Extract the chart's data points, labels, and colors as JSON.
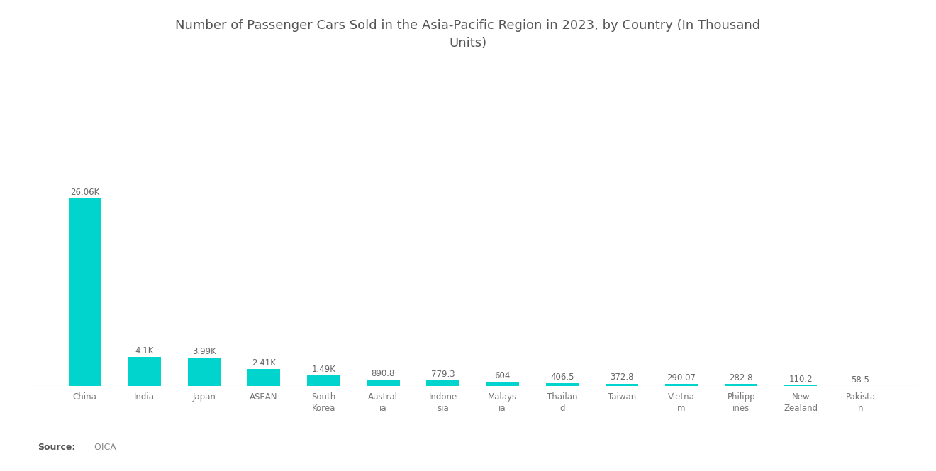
{
  "title": "Number of Passenger Cars Sold in the Asia-Pacific Region in 2023, by Country (In Thousand\nUnits)",
  "categories": [
    "China",
    "India",
    "Japan",
    "ASEAN",
    "South\nKorea",
    "Austral\nia",
    "Indone\nsia",
    "Malays\nia",
    "Thailan\nd",
    "Taiwan",
    "Vietna\nm",
    "Philipp\nines",
    "New\nZealand",
    "Pakista\nn"
  ],
  "values": [
    26060,
    4100,
    3990,
    2410,
    1490,
    890.8,
    779.3,
    604,
    406.5,
    372.8,
    290.07,
    282.8,
    110.2,
    58.5
  ],
  "value_labels": [
    "26.06K",
    "4.1K",
    "3.99K",
    "2.41K",
    "1.49K",
    "890.8",
    "779.3",
    "604",
    "406.5",
    "372.8",
    "290.07",
    "282.8",
    "110.2",
    "58.5"
  ],
  "bar_color": "#00D4CC",
  "background_color": "#FFFFFF",
  "title_color": "#555555",
  "tick_color": "#777777",
  "label_color": "#666666",
  "source_bold": "Source:",
  "source_rest": "  OICA"
}
